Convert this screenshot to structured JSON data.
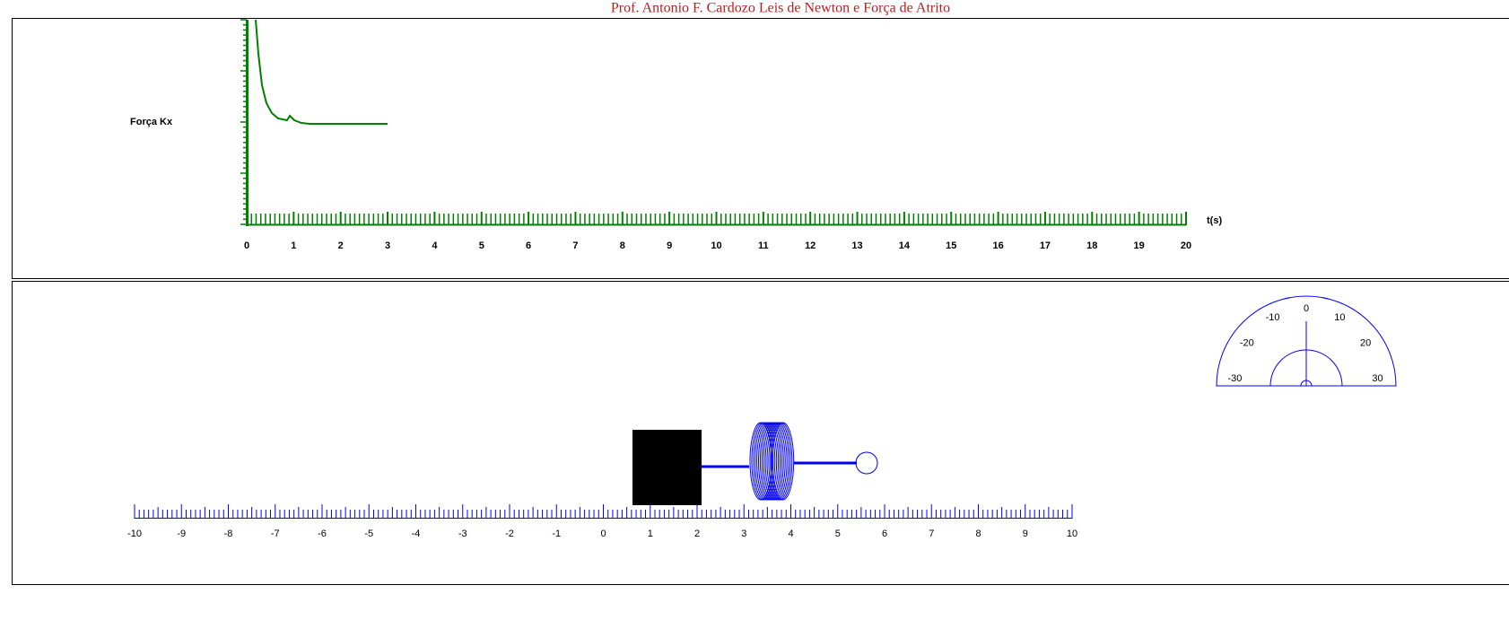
{
  "header": {
    "title": "Prof. Antonio F. Cardozo Leis de Newton e Força de Atrito"
  },
  "graph": {
    "y_label": "Força Kx",
    "x_label": "t(s)",
    "xticks": [
      0,
      1,
      2,
      3,
      4,
      5,
      6,
      7,
      8,
      9,
      10,
      11,
      12,
      13,
      14,
      15,
      16,
      17,
      18,
      19,
      20
    ]
  },
  "ruler": {
    "ticks": [
      -10,
      -9,
      -8,
      -7,
      -6,
      -5,
      -4,
      -3,
      -2,
      -1,
      0,
      1,
      2,
      3,
      4,
      5,
      6,
      7,
      8,
      9,
      10
    ]
  },
  "protractor": {
    "ticks": [
      -30,
      -20,
      -10,
      0,
      10,
      20,
      30
    ]
  }
}
